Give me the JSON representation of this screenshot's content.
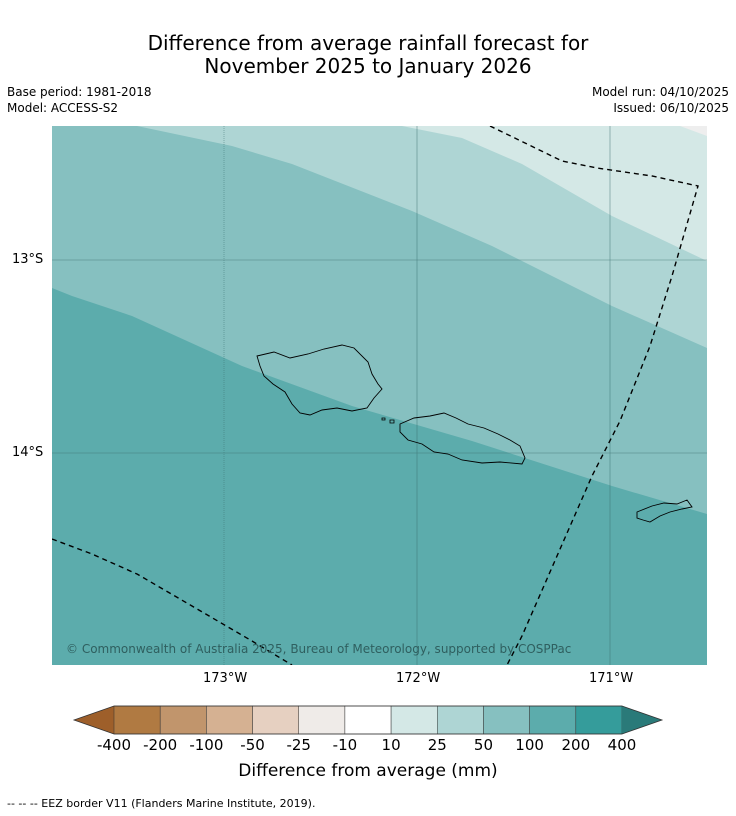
{
  "title_line1": "Difference from average rainfall forecast for",
  "title_line2": "November 2025 to January 2026",
  "base_period": "Base period: 1981-2018",
  "model": "Model: ACCESS-S2",
  "model_run": "Model run: 04/10/2025",
  "issued": "Issued: 06/10/2025",
  "lat_ticks": [
    "13°S",
    "14°S"
  ],
  "lon_ticks": [
    "173°W",
    "172°W",
    "171°W"
  ],
  "copyright": "© Commonwealth of Australia 2025, Bureau of Meteorology, supported by COSPPac",
  "colorbar": {
    "title": "Difference from average (mm)",
    "labels": [
      "-400",
      "-200",
      "-100",
      "-50",
      "-25",
      "-10",
      "10",
      "25",
      "50",
      "100",
      "200",
      "400"
    ],
    "colors": [
      "#9e5f2a",
      "#b07a42",
      "#c1956c",
      "#d5b192",
      "#e6d0c1",
      "#efebe8",
      "#ffffff",
      "#d4e8e6",
      "#aed5d4",
      "#86c0c0",
      "#5cacac",
      "#359c9b",
      "#2a7a79"
    ]
  },
  "eez_note": "--  --  -- EEZ border V11 (Flanders Marine Institute, 2019)."
}
